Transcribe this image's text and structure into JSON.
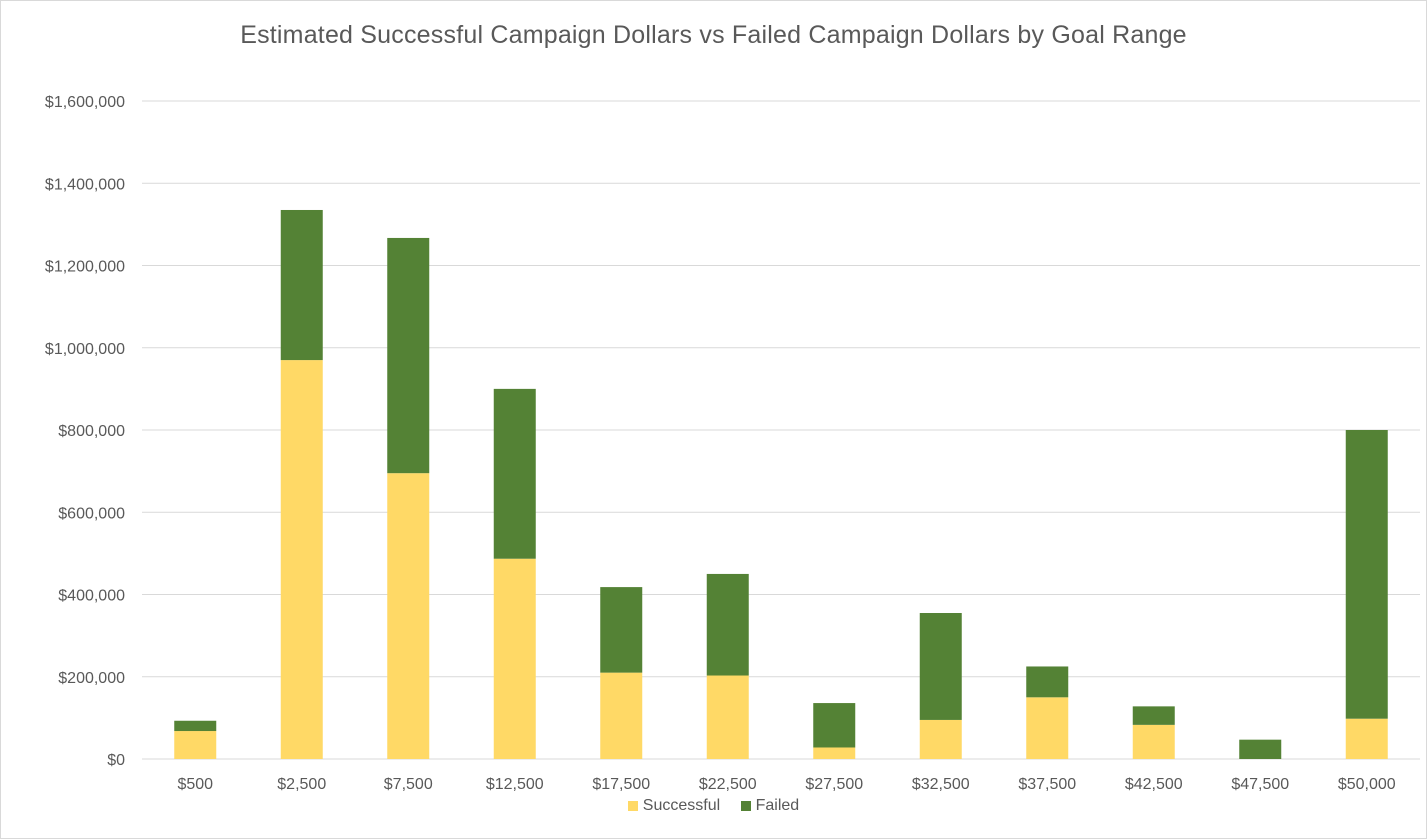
{
  "chart_data": {
    "type": "bar",
    "stacked": true,
    "title": "Estimated Successful Campaign Dollars vs Failed Campaign Dollars by Goal Range",
    "xlabel": "",
    "ylabel": "",
    "categories": [
      "$500",
      "$2,500",
      "$7,500",
      "$12,500",
      "$17,500",
      "$22,500",
      "$27,500",
      "$32,500",
      "$37,500",
      "$42,500",
      "$47,500",
      "$50,000"
    ],
    "series": [
      {
        "name": "Successful",
        "color": "#FFD966",
        "values": [
          68000,
          970000,
          695000,
          487000,
          210000,
          203000,
          28000,
          95000,
          150000,
          83000,
          0,
          98000
        ]
      },
      {
        "name": "Failed",
        "color": "#548235",
        "values": [
          25000,
          365000,
          572000,
          413000,
          208000,
          247000,
          108000,
          260000,
          75000,
          45000,
          47000,
          702000
        ]
      }
    ],
    "ylim": [
      0,
      1600000
    ],
    "yticks": [
      0,
      200000,
      400000,
      600000,
      800000,
      1000000,
      1200000,
      1400000,
      1600000
    ],
    "ytick_labels": [
      "$0",
      "$200,000",
      "$400,000",
      "$600,000",
      "$800,000",
      "$1,000,000",
      "$1,200,000",
      "$1,400,000",
      "$1,600,000"
    ],
    "grid": true,
    "legend_position": "bottom"
  }
}
